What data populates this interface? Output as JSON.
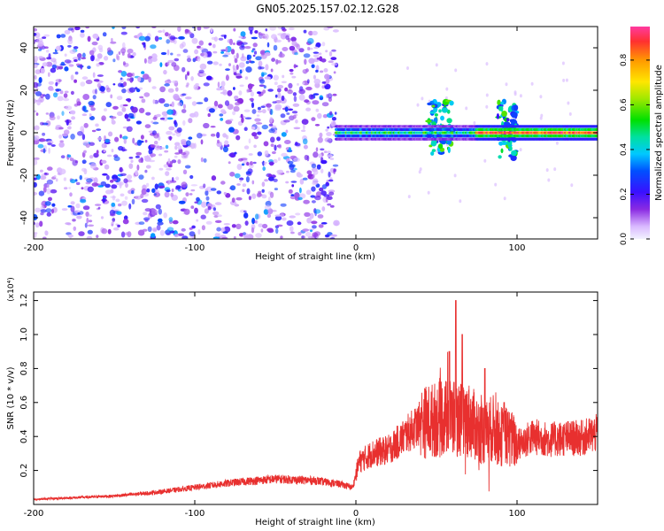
{
  "title": "GN05.2025.157.02.12.G28",
  "chart_data": [
    {
      "type": "heatmap",
      "xlabel": "Height of straight line (km)",
      "ylabel": "Frequency (Hz)",
      "xlim": [
        -200,
        150
      ],
      "ylim": [
        -50,
        50
      ],
      "xticks": [
        -200,
        -100,
        0,
        100
      ],
      "yticks": [
        -40,
        -20,
        0,
        20,
        40
      ],
      "colorbar": {
        "label": "Normalized spectral amplitude",
        "range": [
          0,
          0.95
        ],
        "ticks": [
          0.0,
          0.2,
          0.4,
          0.6,
          0.8
        ]
      },
      "features": [
        {
          "description": "broadband scattered energy",
          "x_range": [
            -200,
            -12
          ],
          "y_range": [
            -50,
            50
          ],
          "amplitude": [
            0.05,
            0.3
          ]
        },
        {
          "description": "narrow carrier line",
          "x_range": [
            -12,
            150
          ],
          "y_center": 0,
          "amplitude": [
            0.3,
            0.95
          ]
        },
        {
          "description": "spread near 50 km",
          "x_range": [
            45,
            60
          ],
          "y_range": [
            -10,
            15
          ],
          "amplitude": [
            0.2,
            0.6
          ]
        },
        {
          "description": "spread near 95 km",
          "x_range": [
            88,
            100
          ],
          "y_range": [
            -12,
            15
          ],
          "amplitude": [
            0.2,
            0.6
          ]
        }
      ]
    },
    {
      "type": "line",
      "xlabel": "Height of straight line (km)",
      "ylabel": "SNR (10 * v/v)",
      "y_multiplier": "(x10⁴)",
      "xlim": [
        -200,
        150
      ],
      "ylim": [
        0,
        1.25
      ],
      "xticks": [
        -200,
        -100,
        0,
        100
      ],
      "yticks": [
        0.2,
        0.4,
        0.6,
        0.8,
        1.0,
        1.2
      ],
      "series": [
        {
          "color": "#e8302f",
          "x": [
            -200,
            -175,
            -150,
            -125,
            -100,
            -75,
            -50,
            -25,
            -10,
            -2,
            2,
            10,
            20,
            30,
            40,
            50,
            60,
            65,
            70,
            75,
            80,
            85,
            90,
            95,
            100,
            110,
            120,
            130,
            140,
            150
          ],
          "y": [
            0.03,
            0.04,
            0.05,
            0.07,
            0.1,
            0.13,
            0.15,
            0.14,
            0.12,
            0.1,
            0.25,
            0.3,
            0.32,
            0.4,
            0.48,
            0.5,
            0.52,
            0.5,
            0.5,
            0.45,
            0.42,
            0.45,
            0.4,
            0.4,
            0.35,
            0.4,
            0.38,
            0.39,
            0.39,
            0.42
          ],
          "peaks": [
            [
              62,
              1.2
            ],
            [
              66,
              1.0
            ],
            [
              58,
              0.9
            ],
            [
              80,
              0.8
            ],
            [
              92,
              0.6
            ],
            [
              96,
              0.5
            ]
          ]
        }
      ]
    }
  ]
}
